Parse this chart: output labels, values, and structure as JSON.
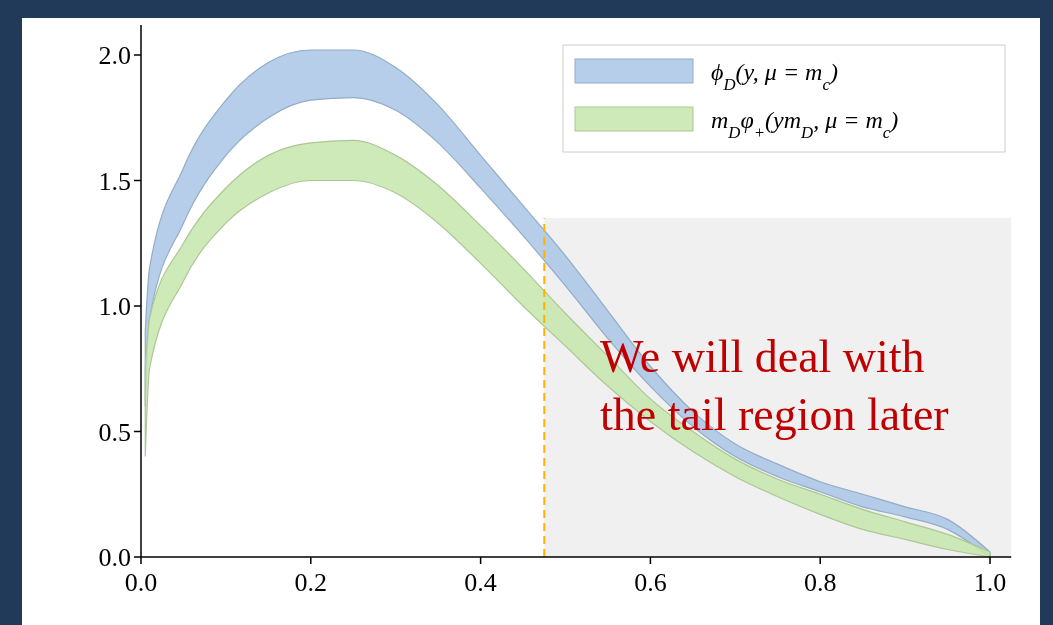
{
  "chart_data": {
    "type": "line",
    "x": [
      0.005,
      0.01,
      0.05,
      0.1,
      0.15,
      0.2,
      0.25,
      0.3,
      0.35,
      0.4,
      0.45,
      0.5,
      0.55,
      0.6,
      0.65,
      0.7,
      0.75,
      0.8,
      0.85,
      0.9,
      0.95,
      1.0
    ],
    "series": [
      {
        "name": "ϕ$_{D}$(y, μ = m$_{c}$)",
        "color": "#a9c6e6",
        "values": [
          null,
          null,
          null,
          null,
          null,
          null,
          null,
          null,
          null,
          null,
          null,
          null,
          null,
          null,
          null,
          null,
          null,
          null,
          null,
          null,
          null,
          null
        ],
        "upper": [
          0.9,
          1.15,
          1.55,
          1.82,
          1.97,
          2.02,
          2.02,
          1.95,
          1.8,
          1.6,
          1.4,
          1.2,
          0.98,
          0.76,
          0.58,
          0.45,
          0.37,
          0.3,
          0.25,
          0.2,
          0.15,
          0.02
        ],
        "lower": [
          0.6,
          0.95,
          1.33,
          1.6,
          1.75,
          1.82,
          1.83,
          1.78,
          1.65,
          1.47,
          1.28,
          1.08,
          0.87,
          0.68,
          0.52,
          0.4,
          0.32,
          0.26,
          0.2,
          0.16,
          0.11,
          0.0
        ]
      },
      {
        "name": "m$_{D}$φ$_{+}$(ym$_{D}$, μ = m$_{c}$)",
        "color": "#c6e6ad",
        "values": [
          null,
          null,
          null,
          null,
          null,
          null,
          null,
          null,
          null,
          null,
          null,
          null,
          null,
          null,
          null,
          null,
          null,
          null,
          null,
          null,
          null,
          null
        ],
        "upper": [
          0.75,
          0.95,
          1.25,
          1.47,
          1.6,
          1.65,
          1.66,
          1.6,
          1.48,
          1.32,
          1.15,
          0.97,
          0.8,
          0.63,
          0.5,
          0.39,
          0.31,
          0.25,
          0.19,
          0.14,
          0.09,
          0.02
        ],
        "lower": [
          0.4,
          0.75,
          1.1,
          1.33,
          1.45,
          1.5,
          1.5,
          1.45,
          1.33,
          1.17,
          1.0,
          0.84,
          0.68,
          0.54,
          0.42,
          0.32,
          0.24,
          0.17,
          0.11,
          0.07,
          0.03,
          0.0
        ]
      }
    ],
    "xlim": [
      0,
      1.025
    ],
    "ylim": [
      0,
      2.12
    ],
    "xticks": [
      {
        "value": 0,
        "label": "0.0"
      },
      0.2,
      0.4,
      0.6,
      0.8,
      {
        "value": 1,
        "label": "1.0"
      }
    ],
    "yticks": [
      {
        "value": 0,
        "label": "0.0"
      },
      0.5,
      {
        "value": 1,
        "label": "1.0"
      },
      1.5,
      {
        "value": 2,
        "label": "2.0"
      }
    ],
    "ref_lines": [
      {
        "axis": "x",
        "value": 0.475,
        "color": "#ffb300",
        "line_style": "dashed"
      }
    ],
    "bands": [
      {
        "axis": "x",
        "from": 0.475,
        "to": 1.025,
        "color": "#f0f0f0"
      }
    ],
    "annotations": [
      "We will deal with the tail region later"
    ],
    "legend": "top right",
    "grid": false
  }
}
